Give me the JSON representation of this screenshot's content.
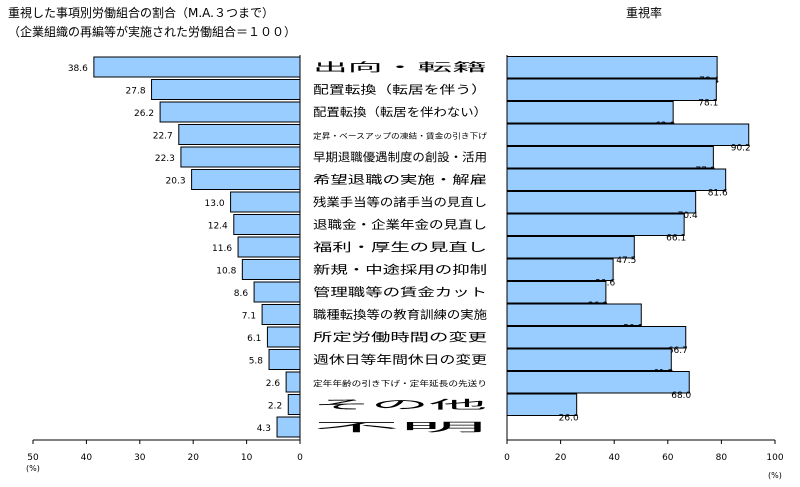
{
  "chart_data": {
    "type": "bar",
    "title": "重視した事項別労働組合の割合（M.A.３つまで）",
    "subtitle": "（企業組織の再編等が実施された労働組合＝１００）",
    "right_title": "重視率",
    "categories": [
      "出向・転籍",
      "配置転換（転居を伴う）",
      "配置転換（転居を伴わない）",
      "定昇・ベースアップの凍結・賃金の引き下げ",
      "早期退職優遇制度の創設・活用",
      "希望退職の実施・解雇",
      "残業手当等の諸手当の見直し",
      "退職金・企業年金の見直し",
      "福利・厚生の見直し",
      "新規・中途採用の抑制",
      "管理職等の賃金カット",
      "職種転換等の教育訓練の実施",
      "所定労働時間の変更",
      "週休日等年間休日の変更",
      "定年年齢の引き下げ・定年延長の先送り",
      "その他",
      "不明"
    ],
    "small_label_indices": [
      3,
      14
    ],
    "series": [
      {
        "name": "割合",
        "values": [
          38.6,
          27.8,
          26.2,
          22.7,
          22.3,
          20.3,
          13.0,
          12.4,
          11.6,
          10.8,
          8.6,
          7.1,
          6.1,
          5.8,
          2.6,
          2.2,
          4.3
        ],
        "xlim": [
          50,
          0
        ],
        "ticks": [
          50,
          40,
          30,
          20,
          10,
          0
        ],
        "unit": "(%)"
      },
      {
        "name": "重視率",
        "values": [
          78.4,
          78.1,
          62.0,
          90.2,
          77.0,
          81.6,
          70.4,
          66.1,
          47.5,
          39.6,
          36.9,
          50.1,
          66.7,
          61.3,
          68.0,
          26.0,
          null
        ],
        "xlim": [
          0,
          100
        ],
        "ticks": [
          0,
          20,
          40,
          60,
          80,
          100
        ],
        "unit": "(%)"
      }
    ],
    "colors": {
      "bar": "#99ccff",
      "edge": "#000000"
    }
  }
}
